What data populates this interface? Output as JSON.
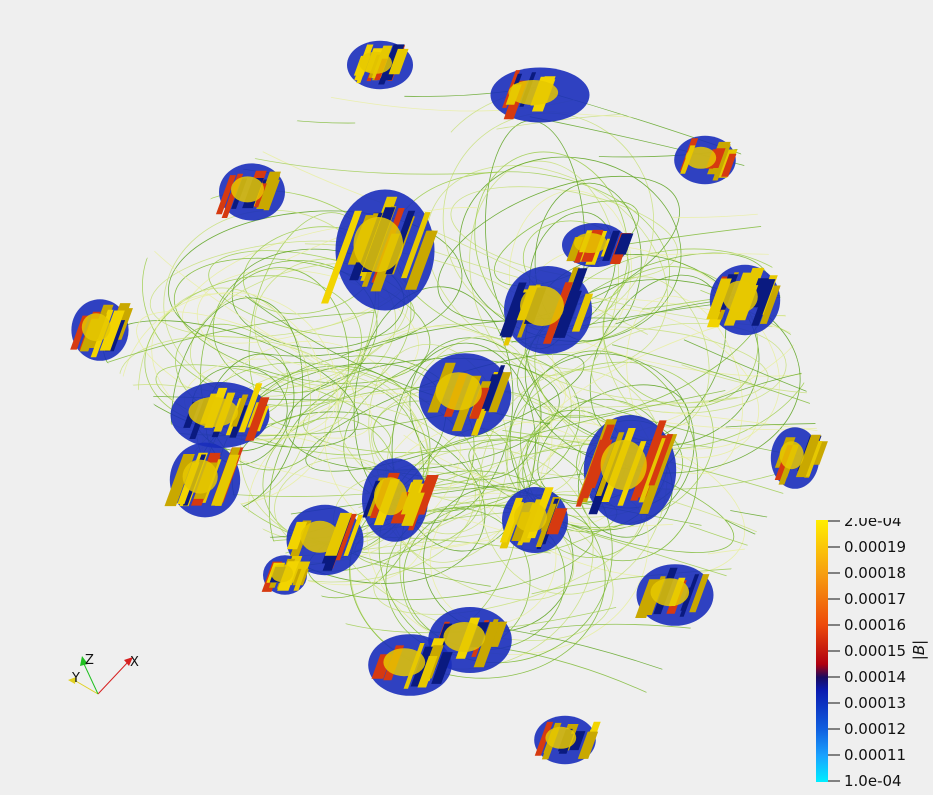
{
  "scene": {
    "field_line_colors": [
      "#7ab82e",
      "#9ccc4a",
      "#c8e07a",
      "#e8ef9e",
      "#5aa21c"
    ],
    "isosurface_colors": [
      "#e6c800",
      "#f2d400",
      "#c9a800",
      "#d63a10",
      "#1a2dbb",
      "#0a1a80"
    ]
  },
  "colorbar": {
    "title": "|B|",
    "min_label": "1.0e-04",
    "max_label": "2.0e-04",
    "ticks": [
      {
        "value": 0.00019,
        "label": "0.00019"
      },
      {
        "value": 0.00018,
        "label": "0.00018"
      },
      {
        "value": 0.00017,
        "label": "0.00017"
      },
      {
        "value": 0.00016,
        "label": "0.00016"
      },
      {
        "value": 0.00015,
        "label": "0.00015"
      },
      {
        "value": 0.00014,
        "label": "0.00014"
      },
      {
        "value": 0.00013,
        "label": "0.00013"
      },
      {
        "value": 0.00012,
        "label": "0.00012"
      },
      {
        "value": 0.00011,
        "label": "0.00011"
      }
    ],
    "range": [
      0.0001,
      0.0002
    ],
    "gradient_stops": [
      {
        "value": 0.0001,
        "color": "#00eeff"
      },
      {
        "value": 0.00011,
        "color": "#1aa3ff"
      },
      {
        "value": 0.00012,
        "color": "#1060e0"
      },
      {
        "value": 0.000135,
        "color": "#0a1ab0"
      },
      {
        "value": 0.00014,
        "color": "#1a0a60"
      },
      {
        "value": 0.000145,
        "color": "#b00010"
      },
      {
        "value": 0.00016,
        "color": "#ee4a0a"
      },
      {
        "value": 0.00018,
        "color": "#f7a010"
      },
      {
        "value": 0.0002,
        "color": "#ffee00"
      }
    ]
  },
  "orientation_axes": {
    "x_label": "X",
    "y_label": "Y",
    "z_label": "Z",
    "x_color": "#d62020",
    "y_color": "#e0d020",
    "z_color": "#20c020"
  }
}
